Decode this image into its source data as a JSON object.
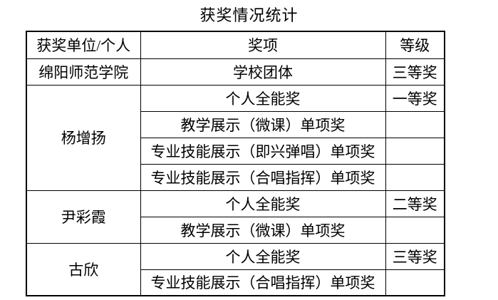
{
  "title": "获奖情况统计",
  "colors": {
    "background": "#ffffff",
    "border": "#000000",
    "text": "#000000"
  },
  "table": {
    "headers": [
      "获奖单位/个人",
      "奖项",
      "等级"
    ],
    "groups": [
      {
        "unit": "绵阳师范学院",
        "rows": [
          {
            "award": "学校团体",
            "grade": "三等奖"
          }
        ]
      },
      {
        "unit": "杨增扬",
        "rows": [
          {
            "award": "个人全能奖",
            "grade": "一等奖"
          },
          {
            "award": "教学展示（微课）单项奖",
            "grade": ""
          },
          {
            "award": "专业技能展示（即兴弹唱）单项奖",
            "grade": ""
          },
          {
            "award": "专业技能展示（合唱指挥）单项奖",
            "grade": ""
          }
        ]
      },
      {
        "unit": "尹彩霞",
        "rows": [
          {
            "award": "个人全能奖",
            "grade": "二等奖"
          },
          {
            "award": "教学展示（微课）单项奖",
            "grade": ""
          }
        ]
      },
      {
        "unit": "古欣",
        "rows": [
          {
            "award": "个人全能奖",
            "grade": "三等奖"
          },
          {
            "award": "专业技能展示（合唱指挥）单项奖",
            "grade": ""
          }
        ]
      }
    ]
  }
}
